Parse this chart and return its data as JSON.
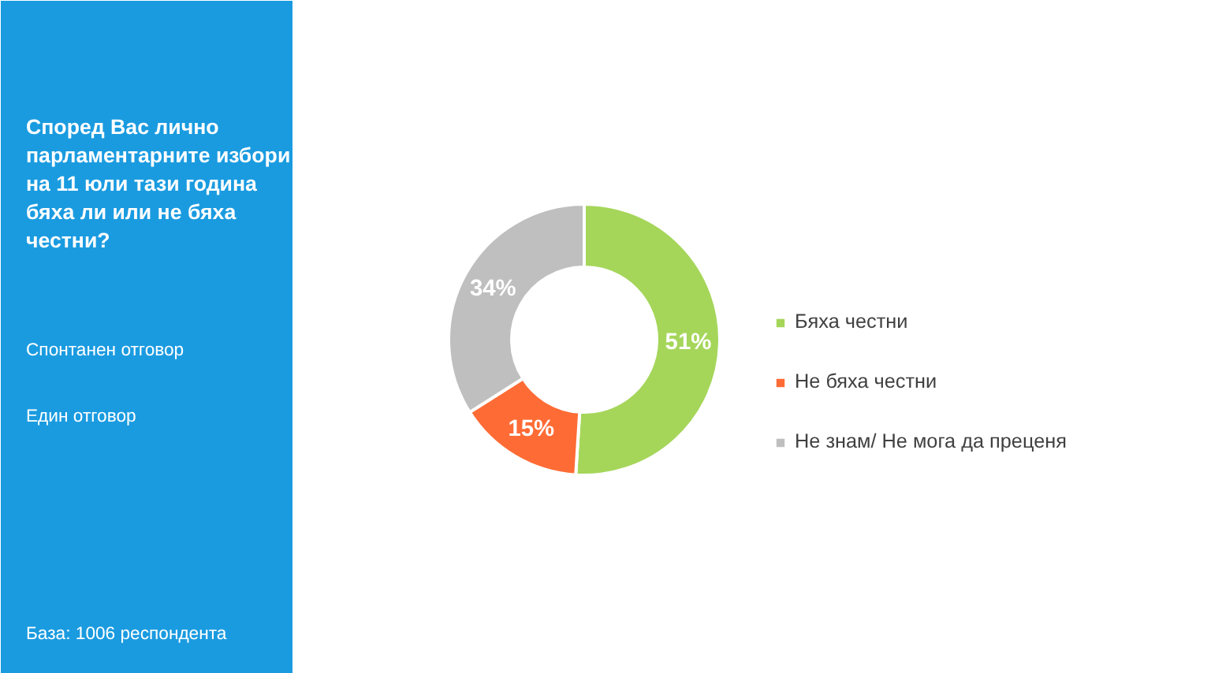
{
  "chart_data": {
    "type": "donut",
    "title": "Според Вас лично парламентарните избори на 11 юли тази година бяха ли или не бяха честни?",
    "categories": [
      "Бяха честни",
      "Не бяха честни",
      "Не знам/ Не мога да преценя"
    ],
    "values": [
      51,
      15,
      34
    ],
    "colors": [
      "#a5d65a",
      "#ff6b35",
      "#bfbfbf"
    ],
    "value_labels": [
      "51%",
      "15%",
      "34%"
    ],
    "legend": "right",
    "annotations": [
      "Спонтанен отговор",
      "Един отговор",
      "База:  1006 респондента"
    ]
  }
}
